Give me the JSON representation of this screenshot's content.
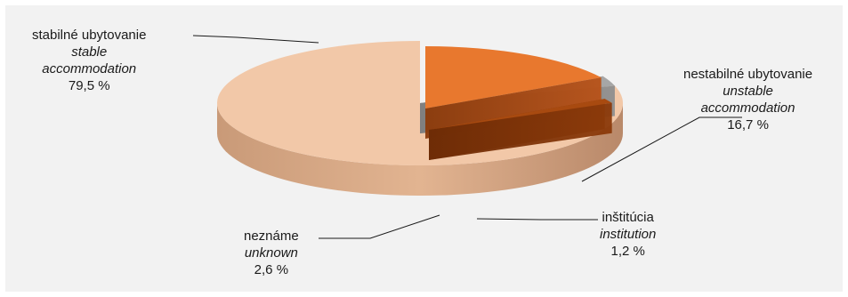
{
  "chart_data": {
    "type": "pie",
    "style": "3d",
    "slices": [
      {
        "label_sk": "stabilné ubytovanie",
        "label_en": "stable accommodation",
        "value": 79.5,
        "value_text": "79,5 %",
        "color": "#f2c8a8"
      },
      {
        "label_sk": "nestabilné ubytovanie",
        "label_en": "unstable accommodation",
        "value": 16.7,
        "value_text": "16,7 %",
        "color": "#e8782e"
      },
      {
        "label_sk": "inštitúcia",
        "label_en": "institution",
        "value": 1.2,
        "value_text": "1,2 %",
        "color": "#a84a10"
      },
      {
        "label_sk": "neznáme",
        "label_en": "unknown",
        "value": 2.6,
        "value_text": "2,6 %",
        "color": "#a6a6a6"
      }
    ],
    "title": "",
    "legend": "none"
  }
}
